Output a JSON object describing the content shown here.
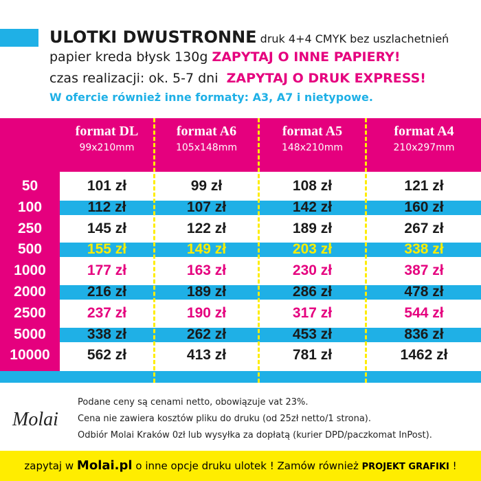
{
  "header": {
    "title": "ULOTKI DWUSTRONNE",
    "title_note": "druk 4+4 CMYK bez uszlachetnień",
    "line2": "papier kreda błysk 130g",
    "line2_cta": "ZAPYTAJ O INNE PAPIERY!",
    "line3": "czas realizacji: ok. 5-7 dni",
    "line3_cta": "ZAPYTAJ O DRUK EXPRESS!",
    "line4": "W ofercie również inne formaty: A3, A7 i nietypowe."
  },
  "table": {
    "columns": [
      {
        "name": "format DL",
        "size": "99x210mm"
      },
      {
        "name": "format A6",
        "size": "105x148mm"
      },
      {
        "name": "format A5",
        "size": "148x210mm"
      },
      {
        "name": "format A4",
        "size": "210x297mm"
      }
    ],
    "rows": [
      [
        "50",
        "101 zł",
        "99 zł",
        "108 zł",
        "121 zł"
      ],
      [
        "100",
        "112 zł",
        "107 zł",
        "142 zł",
        "160 zł"
      ],
      [
        "250",
        "145 zł",
        "122 zł",
        "189 zł",
        "267 zł"
      ],
      [
        "500",
        "155 zł",
        "149 zł",
        "203 zł",
        "338 zł"
      ],
      [
        "1000",
        "177 zł",
        "163 zł",
        "230 zł",
        "387 zł"
      ],
      [
        "2000",
        "216 zł",
        "189 zł",
        "286 zł",
        "478 zł"
      ],
      [
        "2500",
        "237 zł",
        "190 zł",
        "317 zł",
        "544 zł"
      ],
      [
        "5000",
        "338 zł",
        "262 zł",
        "453 zł",
        "836 zł"
      ],
      [
        "10000",
        "562 zł",
        "413 zł",
        "781 zł",
        "1462 zł"
      ]
    ]
  },
  "notes": [
    "Podane ceny są cenami netto, obowiązuje vat 23%.",
    "Cena nie zawiera kosztów pliku do druku (od 25zł netto/1 strona).",
    "Odbiór Molai Kraków 0zł lub wysyłka za dopłatą (kurier DPD/paczkomat InPost)."
  ],
  "logo": "Molai",
  "footer": {
    "text1": "zapytaj w",
    "link": "Molai.pl",
    "text2": "o inne opcje druku ulotek ! Zamów również",
    "bold": "PROJEKT GRAFIKI",
    "text3": "!"
  }
}
